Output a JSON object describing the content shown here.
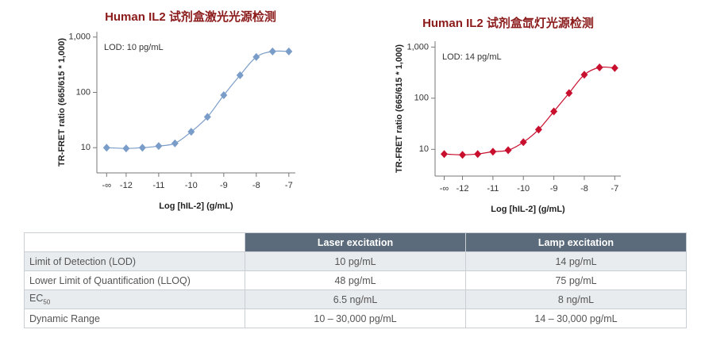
{
  "chart_data": [
    {
      "type": "line",
      "title": "Human IL2 试剂盒激光光源检测",
      "annotation": "LOD: 10 pg/mL",
      "x_label": "Log [hIL-2] (g/mL)",
      "y_label": "TR-FRET ratio (665/615 * 1,000)",
      "x": [
        -12.6,
        -12,
        -11.5,
        -11,
        -10.5,
        -10,
        -9.5,
        -9,
        -8.5,
        -8,
        -7.5,
        -7
      ],
      "values": [
        10,
        9.7,
        10,
        10.7,
        12,
        19.4,
        36,
        89,
        204,
        436,
        550,
        550
      ],
      "color": "#7a9cc8",
      "log_y": true,
      "xlim": [
        -12.9,
        -6.8
      ],
      "xticks": [
        {
          "value": -12.6,
          "label": "-∞"
        },
        -12,
        -11,
        -10,
        -9,
        -8,
        -7
      ],
      "ylim": [
        3.5,
        1250
      ],
      "yticks": [
        10,
        100,
        {
          "value": 1000,
          "label": "1,000"
        }
      ]
    },
    {
      "type": "line",
      "title": "Human IL2 试剂盒氙灯光源检测",
      "annotation": "LOD: 14 pg/mL",
      "x_label": "Log [hIL-2] (g/mL)",
      "y_label": "TR-FRET ratio (665/615 * 1,000)",
      "x": [
        -12.6,
        -12,
        -11.5,
        -11,
        -10.5,
        -10,
        -9.5,
        -9,
        -8.5,
        -8,
        -7.5,
        -7
      ],
      "values": [
        8.1,
        7.8,
        8.1,
        9,
        9.6,
        13.8,
        24.4,
        55,
        126,
        287,
        400,
        390
      ],
      "color": "#c8102e",
      "log_y": true,
      "xlim": [
        -12.9,
        -6.8
      ],
      "xticks": [
        {
          "value": -12.6,
          "label": "-∞"
        },
        -12,
        -11,
        -10,
        -9,
        -8,
        -7
      ],
      "ylim": [
        3,
        1300
      ],
      "yticks": [
        10,
        100,
        {
          "value": 1000,
          "label": "1,000"
        }
      ]
    }
  ],
  "table": {
    "header": [
      "Laser excitation",
      "Lamp excitation"
    ],
    "rows": [
      {
        "label": "Limit of Detection (LOD)",
        "values": [
          "10 pg/mL",
          "14 pg/mL"
        ]
      },
      {
        "label": "Lower Limit of Quantification (LLOQ)",
        "values": [
          "48 pg/mL",
          "75 pg/mL"
        ]
      },
      {
        "label": "EC",
        "label_sub": "50",
        "values": [
          "6.5 ng/mL",
          "8 ng/mL"
        ]
      },
      {
        "label": "Dynamic Range",
        "values": [
          "10 – 30,000 pg/mL",
          "14 – 30,000 pg/mL"
        ]
      }
    ]
  }
}
